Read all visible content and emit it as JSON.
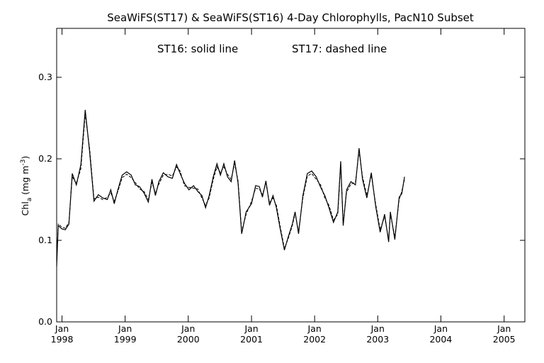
{
  "chart_data": {
    "type": "line",
    "title": "SeaWiFS(ST17) & SeaWiFS(ST16) 4-Day Chlorophylls, PacN10 Subset",
    "annotation_st16": "ST16: solid line",
    "annotation_st17": "ST17: dashed line",
    "ylabel": {
      "prefix": "Chl",
      "subscript": "a",
      "unit_open": " (mg m",
      "superscript": "-3",
      "unit_close": ")"
    },
    "ylim": [
      0.0,
      0.36
    ],
    "yticks": [
      {
        "value": 0.0,
        "label": "0.0"
      },
      {
        "value": 0.1,
        "label": "0.1"
      },
      {
        "value": 0.2,
        "label": "0.2"
      },
      {
        "value": 0.3,
        "label": "0.3"
      }
    ],
    "xlim": [
      "1997-12-01",
      "2005-05-01"
    ],
    "xticks": [
      {
        "date": "1998-01-01",
        "month": "Jan",
        "year": "1998"
      },
      {
        "date": "1999-01-01",
        "month": "Jan",
        "year": "1999"
      },
      {
        "date": "2000-01-01",
        "month": "Jan",
        "year": "2000"
      },
      {
        "date": "2001-01-01",
        "month": "Jan",
        "year": "2001"
      },
      {
        "date": "2002-01-01",
        "month": "Jan",
        "year": "2002"
      },
      {
        "date": "2003-01-01",
        "month": "Jan",
        "year": "2003"
      },
      {
        "date": "2004-01-01",
        "month": "Jan",
        "year": "2004"
      },
      {
        "date": "2005-01-01",
        "month": "Jan",
        "year": "2005"
      }
    ],
    "series": [
      {
        "style": "solid",
        "points": [
          [
            "1997-12-01",
            0.068
          ],
          [
            "1997-12-10",
            0.118
          ],
          [
            "1998-01-01",
            0.114
          ],
          [
            "1998-01-20",
            0.113
          ],
          [
            "1998-02-10",
            0.12
          ],
          [
            "1998-03-01",
            0.182
          ],
          [
            "1998-03-25",
            0.168
          ],
          [
            "1998-04-20",
            0.193
          ],
          [
            "1998-05-15",
            0.26
          ],
          [
            "1998-06-10",
            0.208
          ],
          [
            "1998-07-05",
            0.148
          ],
          [
            "1998-07-30",
            0.156
          ],
          [
            "1998-08-25",
            0.152
          ],
          [
            "1998-09-20",
            0.15
          ],
          [
            "1998-10-10",
            0.162
          ],
          [
            "1998-10-30",
            0.145
          ],
          [
            "1998-11-20",
            0.162
          ],
          [
            "1998-12-15",
            0.18
          ],
          [
            "1999-01-10",
            0.184
          ],
          [
            "1999-02-05",
            0.18
          ],
          [
            "1999-03-01",
            0.168
          ],
          [
            "1999-03-25",
            0.166
          ],
          [
            "1999-04-20",
            0.158
          ],
          [
            "1999-05-15",
            0.147
          ],
          [
            "1999-06-05",
            0.175
          ],
          [
            "1999-06-25",
            0.155
          ],
          [
            "1999-07-15",
            0.172
          ],
          [
            "1999-08-10",
            0.183
          ],
          [
            "1999-09-05",
            0.178
          ],
          [
            "1999-10-01",
            0.176
          ],
          [
            "1999-10-25",
            0.193
          ],
          [
            "1999-11-15",
            0.182
          ],
          [
            "1999-12-10",
            0.17
          ],
          [
            "2000-01-05",
            0.162
          ],
          [
            "2000-02-01",
            0.167
          ],
          [
            "2000-02-25",
            0.16
          ],
          [
            "2000-03-20",
            0.155
          ],
          [
            "2000-04-10",
            0.14
          ],
          [
            "2000-05-01",
            0.155
          ],
          [
            "2000-05-25",
            0.178
          ],
          [
            "2000-06-15",
            0.194
          ],
          [
            "2000-07-05",
            0.18
          ],
          [
            "2000-07-25",
            0.194
          ],
          [
            "2000-08-15",
            0.178
          ],
          [
            "2000-09-05",
            0.172
          ],
          [
            "2000-09-25",
            0.198
          ],
          [
            "2000-10-15",
            0.17
          ],
          [
            "2000-11-05",
            0.108
          ],
          [
            "2000-12-01",
            0.135
          ],
          [
            "2001-01-01",
            0.145
          ],
          [
            "2001-01-25",
            0.167
          ],
          [
            "2001-02-15",
            0.166
          ],
          [
            "2001-03-05",
            0.153
          ],
          [
            "2001-03-25",
            0.173
          ],
          [
            "2001-04-15",
            0.143
          ],
          [
            "2001-05-05",
            0.155
          ],
          [
            "2001-05-25",
            0.14
          ],
          [
            "2001-06-15",
            0.115
          ],
          [
            "2001-07-10",
            0.088
          ],
          [
            "2001-08-01",
            0.104
          ],
          [
            "2001-08-25",
            0.12
          ],
          [
            "2001-09-10",
            0.135
          ],
          [
            "2001-09-30",
            0.108
          ],
          [
            "2001-10-25",
            0.155
          ],
          [
            "2001-11-20",
            0.182
          ],
          [
            "2001-12-15",
            0.185
          ],
          [
            "2002-01-10",
            0.178
          ],
          [
            "2002-02-05",
            0.165
          ],
          [
            "2002-03-01",
            0.155
          ],
          [
            "2002-03-25",
            0.14
          ],
          [
            "2002-04-20",
            0.122
          ],
          [
            "2002-05-15",
            0.135
          ],
          [
            "2002-06-01",
            0.197
          ],
          [
            "2002-06-15",
            0.118
          ],
          [
            "2002-07-05",
            0.162
          ],
          [
            "2002-07-30",
            0.172
          ],
          [
            "2002-08-25",
            0.168
          ],
          [
            "2002-09-15",
            0.213
          ],
          [
            "2002-10-05",
            0.175
          ],
          [
            "2002-10-30",
            0.152
          ],
          [
            "2002-11-25",
            0.183
          ],
          [
            "2002-12-20",
            0.142
          ],
          [
            "2003-01-15",
            0.11
          ],
          [
            "2003-02-10",
            0.132
          ],
          [
            "2003-03-05",
            0.098
          ],
          [
            "2003-03-15",
            0.135
          ],
          [
            "2003-04-10",
            0.101
          ],
          [
            "2003-05-05",
            0.153
          ],
          [
            "2003-05-20",
            0.157
          ],
          [
            "2003-06-05",
            0.178
          ]
        ]
      },
      {
        "style": "dashed",
        "points": [
          [
            "1997-12-01",
            0.075
          ],
          [
            "1997-12-10",
            0.12
          ],
          [
            "1998-01-01",
            0.116
          ],
          [
            "1998-01-20",
            0.115
          ],
          [
            "1998-02-10",
            0.122
          ],
          [
            "1998-03-01",
            0.178
          ],
          [
            "1998-03-25",
            0.17
          ],
          [
            "1998-04-20",
            0.188
          ],
          [
            "1998-05-15",
            0.255
          ],
          [
            "1998-06-10",
            0.212
          ],
          [
            "1998-07-05",
            0.151
          ],
          [
            "1998-07-30",
            0.153
          ],
          [
            "1998-08-25",
            0.15
          ],
          [
            "1998-09-20",
            0.153
          ],
          [
            "1998-10-10",
            0.158
          ],
          [
            "1998-10-30",
            0.148
          ],
          [
            "1998-11-20",
            0.16
          ],
          [
            "1998-12-15",
            0.177
          ],
          [
            "1999-01-10",
            0.181
          ],
          [
            "1999-02-05",
            0.177
          ],
          [
            "1999-03-01",
            0.171
          ],
          [
            "1999-03-25",
            0.163
          ],
          [
            "1999-04-20",
            0.16
          ],
          [
            "1999-05-15",
            0.15
          ],
          [
            "1999-06-05",
            0.171
          ],
          [
            "1999-06-25",
            0.158
          ],
          [
            "1999-07-15",
            0.169
          ],
          [
            "1999-08-10",
            0.18
          ],
          [
            "1999-09-05",
            0.181
          ],
          [
            "1999-10-01",
            0.179
          ],
          [
            "1999-10-25",
            0.19
          ],
          [
            "1999-11-15",
            0.185
          ],
          [
            "1999-12-10",
            0.167
          ],
          [
            "2000-01-05",
            0.165
          ],
          [
            "2000-02-01",
            0.164
          ],
          [
            "2000-02-25",
            0.163
          ],
          [
            "2000-03-20",
            0.152
          ],
          [
            "2000-04-10",
            0.143
          ],
          [
            "2000-05-01",
            0.152
          ],
          [
            "2000-05-25",
            0.175
          ],
          [
            "2000-06-15",
            0.19
          ],
          [
            "2000-07-05",
            0.183
          ],
          [
            "2000-07-25",
            0.19
          ],
          [
            "2000-08-15",
            0.181
          ],
          [
            "2000-09-05",
            0.175
          ],
          [
            "2000-09-25",
            0.194
          ],
          [
            "2000-10-15",
            0.173
          ],
          [
            "2000-11-05",
            0.111
          ],
          [
            "2000-12-01",
            0.132
          ],
          [
            "2001-01-01",
            0.148
          ],
          [
            "2001-01-25",
            0.164
          ],
          [
            "2001-02-15",
            0.163
          ],
          [
            "2001-03-05",
            0.156
          ],
          [
            "2001-03-25",
            0.17
          ],
          [
            "2001-04-15",
            0.146
          ],
          [
            "2001-05-05",
            0.152
          ],
          [
            "2001-05-25",
            0.143
          ],
          [
            "2001-06-15",
            0.118
          ],
          [
            "2001-07-10",
            0.09
          ],
          [
            "2001-08-01",
            0.102
          ],
          [
            "2001-08-25",
            0.118
          ],
          [
            "2001-09-10",
            0.133
          ],
          [
            "2001-09-30",
            0.111
          ],
          [
            "2001-10-25",
            0.152
          ],
          [
            "2001-11-20",
            0.179
          ],
          [
            "2001-12-15",
            0.182
          ],
          [
            "2002-01-10",
            0.175
          ],
          [
            "2002-02-05",
            0.168
          ],
          [
            "2002-03-01",
            0.152
          ],
          [
            "2002-03-25",
            0.143
          ],
          [
            "2002-04-20",
            0.125
          ],
          [
            "2002-05-15",
            0.132
          ],
          [
            "2002-06-01",
            0.193
          ],
          [
            "2002-06-15",
            0.121
          ],
          [
            "2002-07-05",
            0.159
          ],
          [
            "2002-07-30",
            0.169
          ],
          [
            "2002-08-25",
            0.171
          ],
          [
            "2002-09-15",
            0.209
          ],
          [
            "2002-10-05",
            0.178
          ],
          [
            "2002-10-30",
            0.155
          ],
          [
            "2002-11-25",
            0.18
          ],
          [
            "2002-12-20",
            0.145
          ],
          [
            "2003-01-15",
            0.113
          ],
          [
            "2003-02-10",
            0.129
          ],
          [
            "2003-03-05",
            0.101
          ],
          [
            "2003-03-15",
            0.132
          ],
          [
            "2003-04-10",
            0.104
          ],
          [
            "2003-05-05",
            0.15
          ],
          [
            "2003-05-20",
            0.16
          ],
          [
            "2003-06-05",
            0.175
          ]
        ]
      }
    ]
  }
}
